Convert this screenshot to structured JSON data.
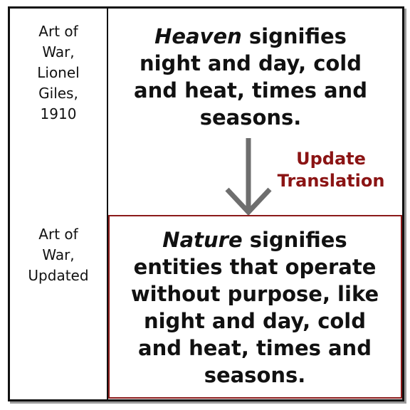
{
  "rows": {
    "original": {
      "label_lines": [
        "Art of",
        "War,",
        "Lionel",
        "Giles,",
        "1910"
      ],
      "emphasis_word": "Heaven",
      "text_first_line_rest": " signifies",
      "text_lines": [
        "night and day, cold",
        "and heat, times and",
        "seasons."
      ]
    },
    "updated": {
      "label_lines": [
        "Art of",
        "War,",
        "Updated"
      ],
      "emphasis_word": "Nature",
      "text_first_line_rest": " signifies",
      "text_lines": [
        "entities that operate",
        "without purpose, like",
        "night and day, cold",
        "and heat, times and",
        "seasons."
      ]
    }
  },
  "transition": {
    "label_lines": [
      "Update",
      "Translation"
    ]
  },
  "colors": {
    "accent": "#8b1414",
    "arrow": "#6e6e6e",
    "border": "#111111"
  }
}
